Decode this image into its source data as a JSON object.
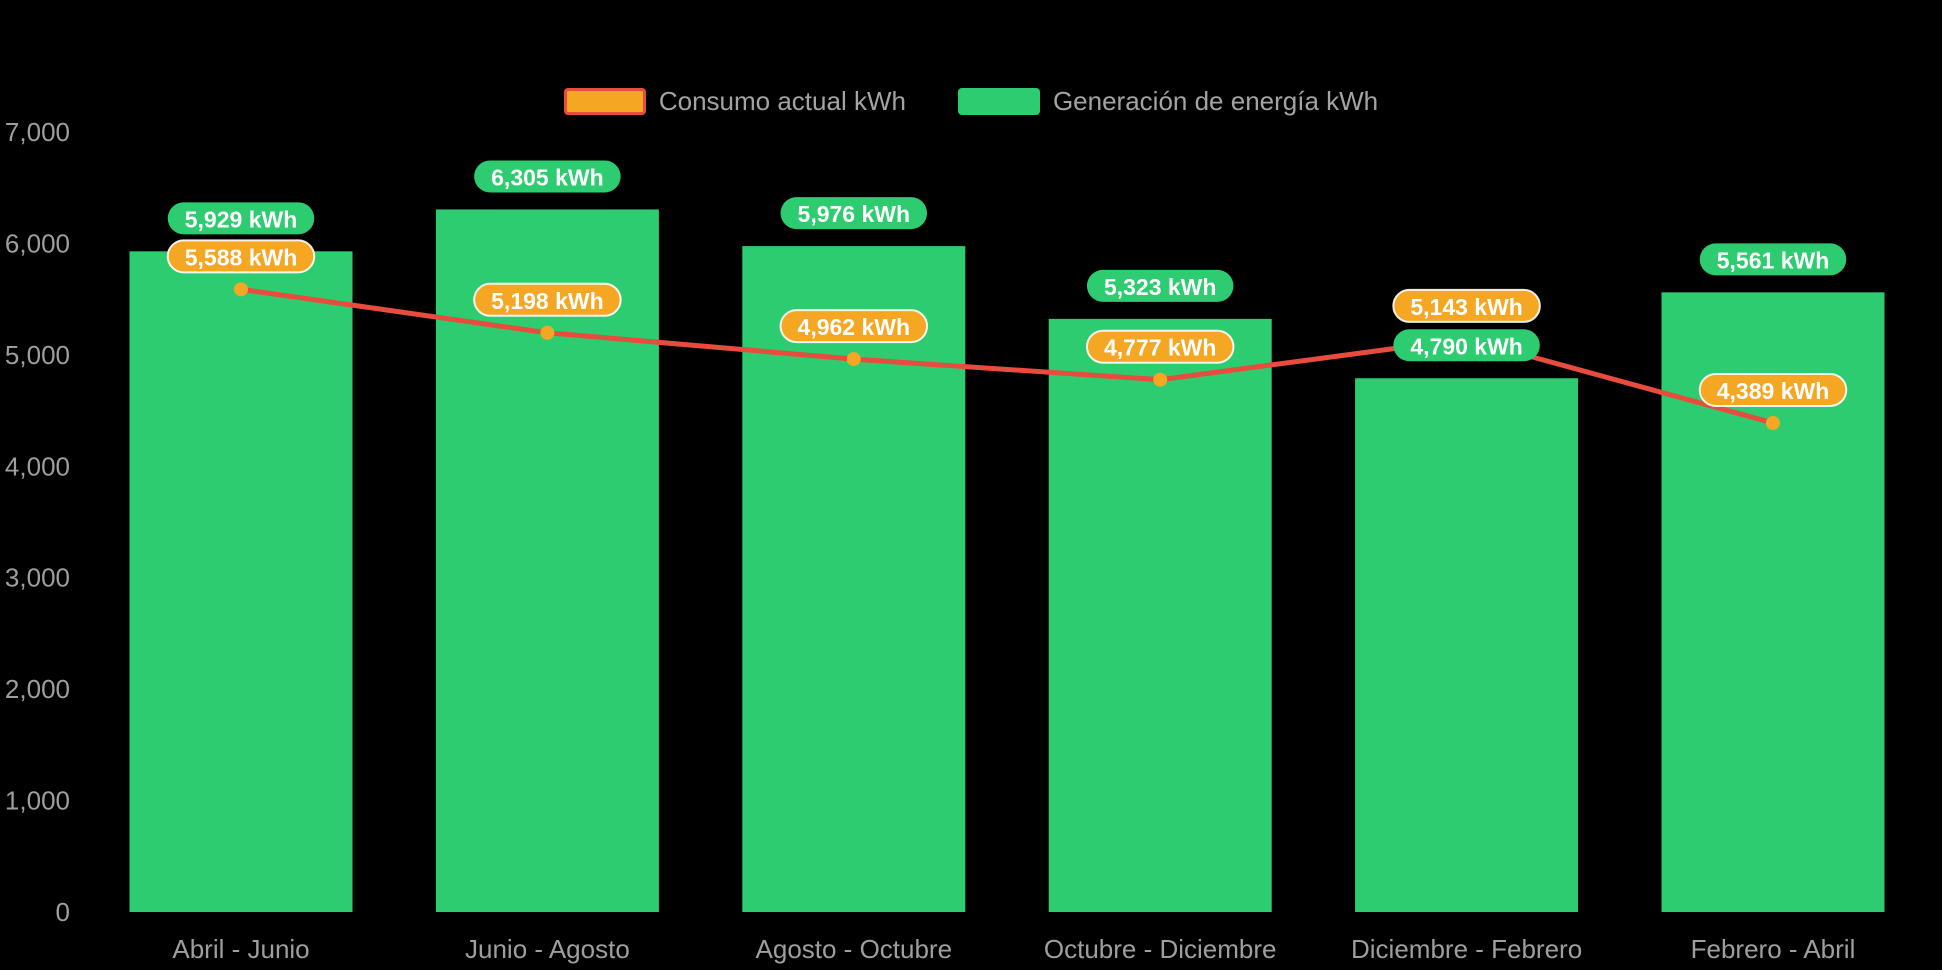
{
  "colors": {
    "background": "#000000",
    "bar": "#2ecc71",
    "line": "#e74c3c",
    "marker": "#f5a623",
    "bar_label_bg": "#2ecc71",
    "line_label_bg": "#f5a623",
    "label_text": "#ffffff",
    "axis_text": "#9e9e9e",
    "legend_text": "#a3a3a3"
  },
  "legend": [
    {
      "label": "Consumo actual kWh",
      "series": "consumption"
    },
    {
      "label": "Generación de energía kWh",
      "series": "generation"
    }
  ],
  "chart_data": {
    "type": "bar+line",
    "title": "",
    "categories": [
      "Abril - Junio",
      "Junio - Agosto",
      "Agosto - Octubre",
      "Octubre - Diciembre",
      "Diciembre - Febrero",
      "Febrero - Abril"
    ],
    "series": [
      {
        "name": "Consumo actual kWh",
        "type": "line",
        "values": [
          5588,
          5198,
          4962,
          4777,
          5143,
          4389
        ]
      },
      {
        "name": "Generación de energía kWh",
        "type": "bar",
        "values": [
          5929,
          6305,
          5976,
          5323,
          4790,
          5561
        ]
      }
    ],
    "value_labels": {
      "generation": [
        "5,929 kWh",
        "6,305 kWh",
        "5,976 kWh",
        "5,323 kWh",
        "4,790 kWh",
        "5,561 kWh"
      ],
      "consumption": [
        "5,588 kWh",
        "5,198 kWh",
        "4,962 kWh",
        "4,777 kWh",
        "5,143 kWh",
        "4,389 kWh"
      ]
    },
    "y_axis": {
      "ticks": [
        "0",
        "1,000",
        "2,000",
        "3,000",
        "4,000",
        "5,000",
        "6,000",
        "7,000"
      ],
      "min": 0,
      "max": 7000,
      "tick_step": 1000
    },
    "grid": false,
    "legend_position": "top"
  }
}
